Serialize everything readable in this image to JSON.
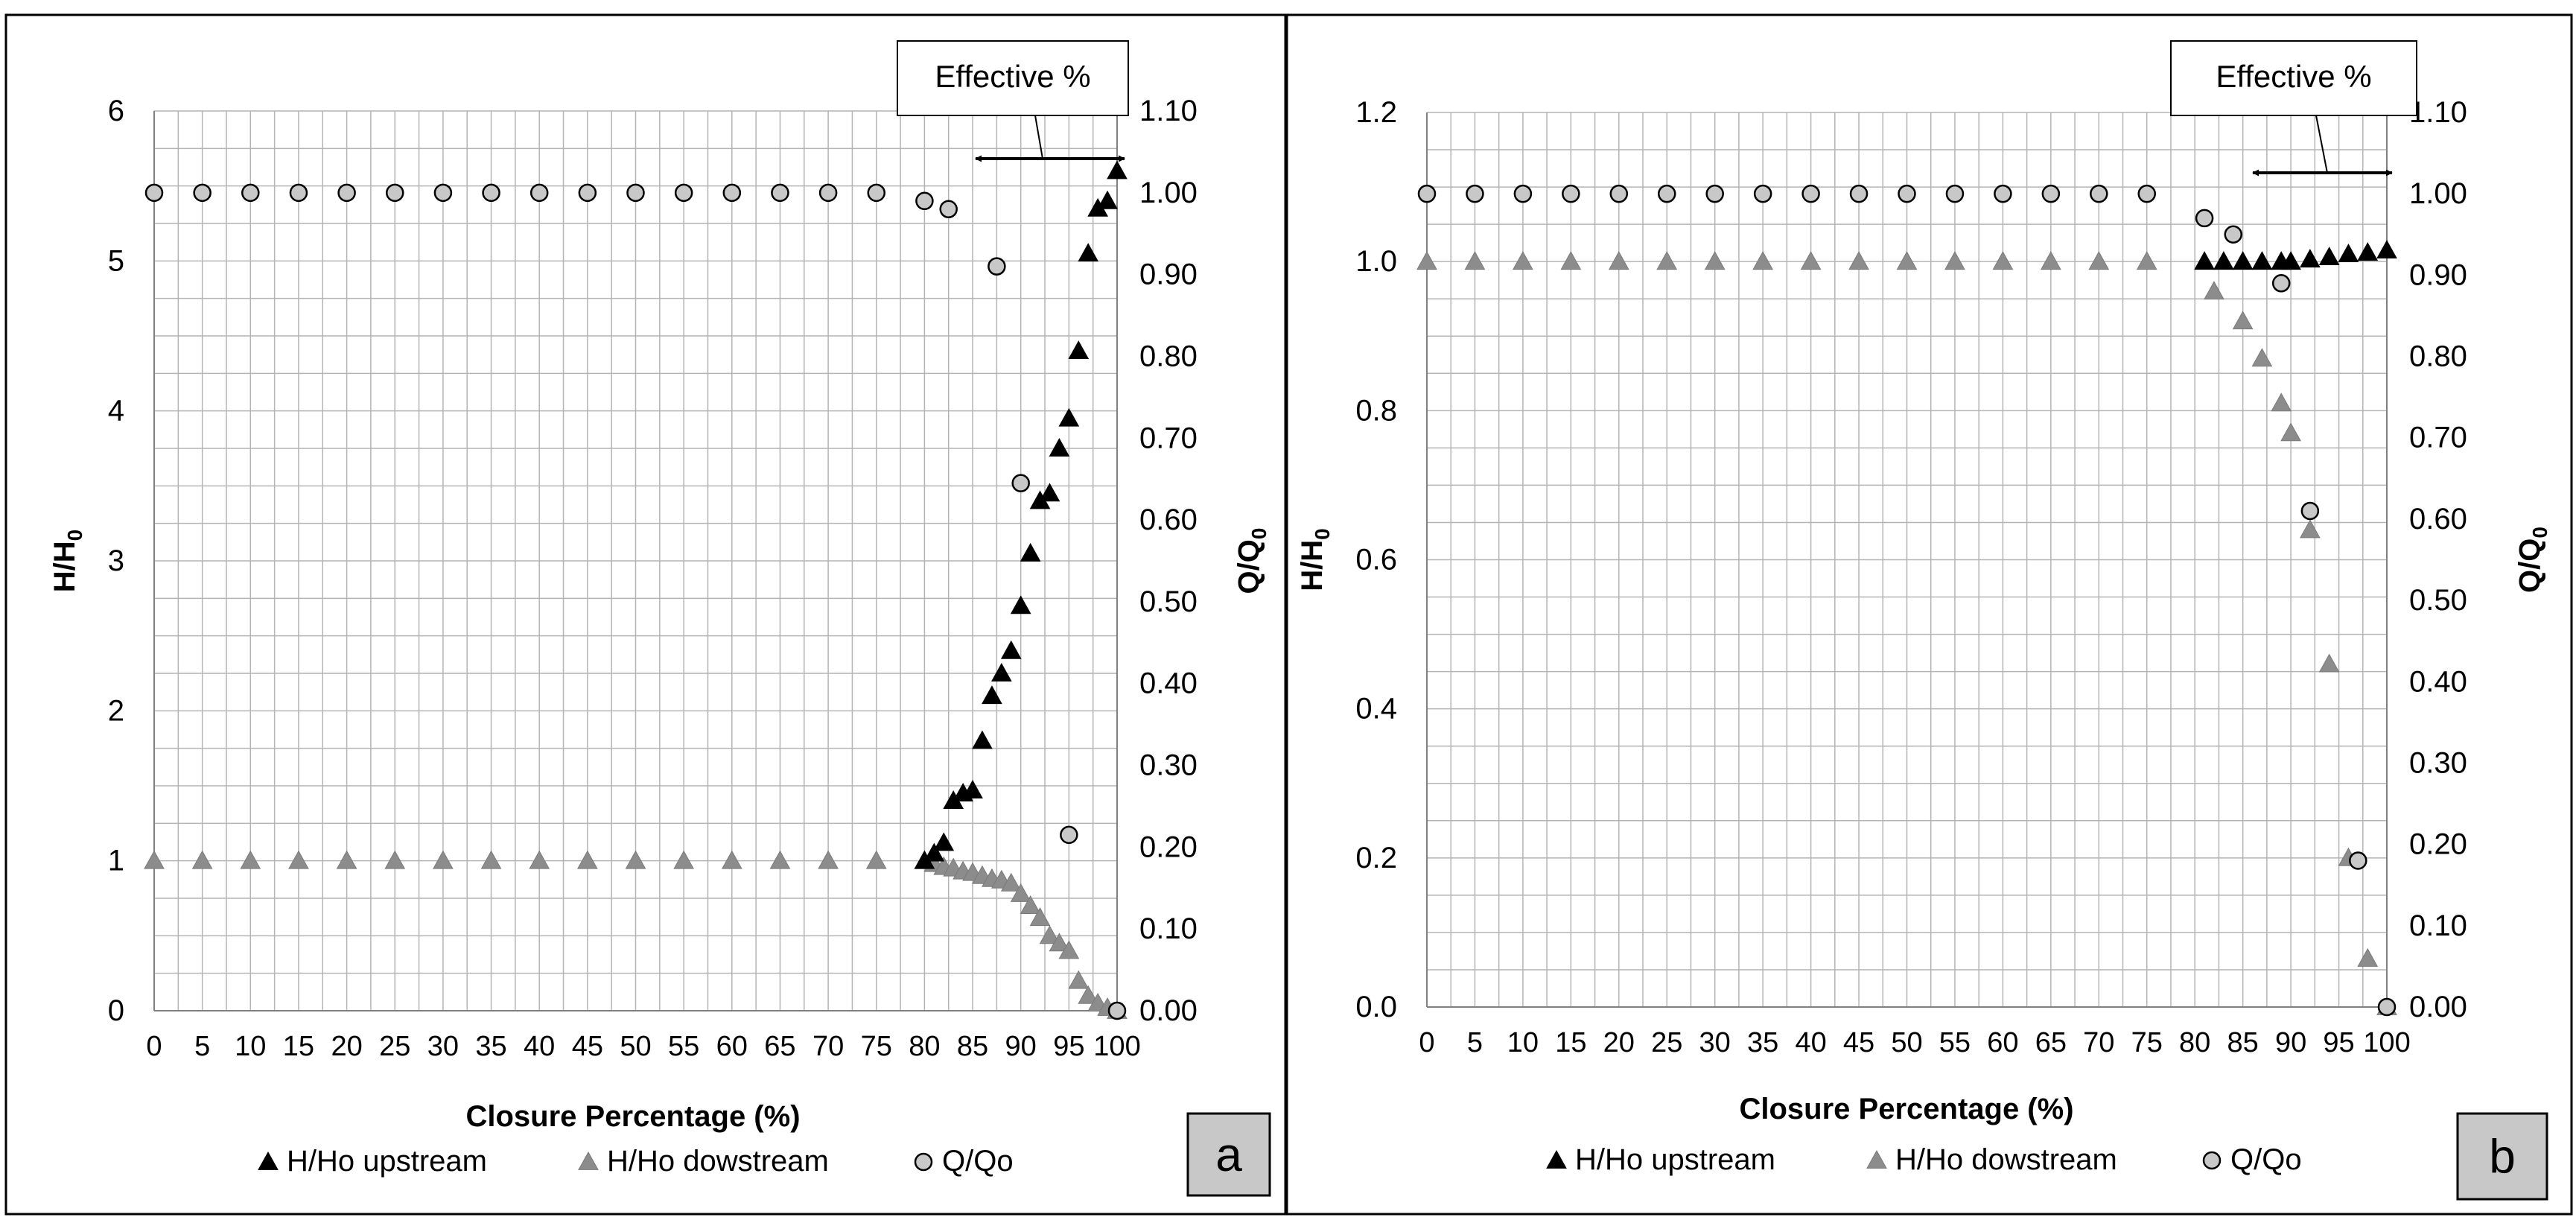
{
  "figure": {
    "panel_labels": [
      "a",
      "b"
    ]
  },
  "chart_data": [
    {
      "type": "scatter",
      "panel": "a",
      "title": "",
      "xlabel": "Closure Percentage (%)",
      "ylabel_left_main": "H/H",
      "ylabel_left_sub": "0",
      "ylabel_right_main": "Q/Q",
      "ylabel_right_sub": "0",
      "xlim": [
        0,
        100
      ],
      "ylim_left": [
        0,
        6
      ],
      "ylim_right": [
        0,
        1.1
      ],
      "xticks": [
        "0",
        "5",
        "10",
        "15",
        "20",
        "25",
        "30",
        "35",
        "40",
        "45",
        "50",
        "55",
        "60",
        "65",
        "70",
        "75",
        "80",
        "85",
        "90",
        "95",
        "100"
      ],
      "yticks_left": [
        "0",
        "1",
        "2",
        "3",
        "4",
        "5",
        "6"
      ],
      "yticks_right": [
        "0.00",
        "0.10",
        "0.20",
        "0.30",
        "0.40",
        "0.50",
        "0.60",
        "0.70",
        "0.80",
        "0.90",
        "1.00",
        "1.10"
      ],
      "grid": true,
      "legend": [
        "H/Ho upstream",
        "H/Ho dowstream",
        "Q/Qo"
      ],
      "annotation": {
        "text": "Effective %",
        "arrow_from": 86,
        "arrow_to": 100
      },
      "series": [
        {
          "name": "H/Ho upstream",
          "marker": "triangle",
          "color": "#000000",
          "axis": "left",
          "x": [
            80,
            81,
            82,
            83,
            84,
            85,
            86,
            87,
            88,
            89,
            90,
            91,
            92,
            93,
            94,
            95,
            96,
            97,
            98,
            99,
            100
          ],
          "y": [
            1.0,
            1.05,
            1.12,
            1.4,
            1.45,
            1.47,
            1.8,
            2.1,
            2.25,
            2.4,
            2.7,
            3.05,
            3.4,
            3.45,
            3.75,
            3.95,
            4.4,
            5.05,
            5.35,
            5.4,
            5.6
          ]
        },
        {
          "name": "H/Ho dowstream",
          "marker": "triangle",
          "color": "#8c8c8c",
          "axis": "left",
          "x": [
            0,
            5,
            10,
            15,
            20,
            25,
            30,
            35,
            40,
            45,
            50,
            55,
            60,
            65,
            70,
            75,
            80,
            81,
            82,
            83,
            84,
            85,
            86,
            87,
            88,
            89,
            90,
            91,
            92,
            93,
            94,
            95,
            96,
            97,
            98,
            99,
            100
          ],
          "y": [
            1,
            1,
            1,
            1,
            1,
            1,
            1,
            1,
            1,
            1,
            1,
            1,
            1,
            1,
            1,
            1,
            1.0,
            0.98,
            0.96,
            0.95,
            0.93,
            0.92,
            0.9,
            0.88,
            0.87,
            0.85,
            0.78,
            0.7,
            0.62,
            0.5,
            0.45,
            0.4,
            0.2,
            0.1,
            0.05,
            0.02,
            0.0
          ]
        },
        {
          "name": "Q/Qo",
          "marker": "circle",
          "color": "#c8c8c8",
          "axis": "right",
          "x": [
            0,
            5,
            10,
            15,
            20,
            25,
            30,
            35,
            40,
            45,
            50,
            55,
            60,
            65,
            70,
            75,
            80,
            82.5,
            87.5,
            90,
            95,
            100
          ],
          "y": [
            1,
            1,
            1,
            1,
            1,
            1,
            1,
            1,
            1,
            1,
            1,
            1,
            1,
            1,
            1,
            1,
            0.99,
            0.98,
            0.91,
            0.645,
            0.215,
            0.0
          ]
        }
      ]
    },
    {
      "type": "scatter",
      "panel": "b",
      "title": "",
      "xlabel": "Closure Percentage (%)",
      "ylabel_left_main": "H/H",
      "ylabel_left_sub": "0",
      "ylabel_right_main": "Q/Q",
      "ylabel_right_sub": "0",
      "xlim": [
        0,
        100
      ],
      "ylim_left": [
        0,
        1.2
      ],
      "ylim_right": [
        0,
        1.1
      ],
      "xticks": [
        "0",
        "5",
        "10",
        "15",
        "20",
        "25",
        "30",
        "35",
        "40",
        "45",
        "50",
        "55",
        "60",
        "65",
        "70",
        "75",
        "80",
        "85",
        "90",
        "95",
        "100"
      ],
      "yticks_left": [
        "0.0",
        "0.2",
        "0.4",
        "0.6",
        "0.8",
        "1.0",
        "1.2"
      ],
      "yticks_right": [
        "0.00",
        "0.10",
        "0.20",
        "0.30",
        "0.40",
        "0.50",
        "0.60",
        "0.70",
        "0.80",
        "0.90",
        "1.00",
        "1.10"
      ],
      "grid": true,
      "legend": [
        "H/Ho upstream",
        "H/Ho dowstream",
        "Q/Qo"
      ],
      "annotation": {
        "text": "Effective %",
        "arrow_from": 86,
        "arrow_to": 100
      },
      "series": [
        {
          "name": "H/Ho upstream",
          "marker": "triangle",
          "color": "#000000",
          "axis": "left",
          "x": [
            81,
            83,
            85,
            87,
            89,
            90,
            92,
            94,
            96,
            98,
            100
          ],
          "y": [
            1.0,
            1.0,
            1.0,
            1.0,
            1.0,
            1.0,
            1.003,
            1.006,
            1.01,
            1.012,
            1.015
          ]
        },
        {
          "name": "H/Ho dowstream",
          "marker": "triangle",
          "color": "#8c8c8c",
          "axis": "left",
          "x": [
            0,
            5,
            10,
            15,
            20,
            25,
            30,
            35,
            40,
            45,
            50,
            55,
            60,
            65,
            70,
            75,
            82,
            85,
            87,
            89,
            90,
            92,
            94,
            96,
            98,
            100
          ],
          "y": [
            1,
            1,
            1,
            1,
            1,
            1,
            1,
            1,
            1,
            1,
            1,
            1,
            1,
            1,
            1,
            1,
            0.96,
            0.92,
            0.87,
            0.81,
            0.77,
            0.64,
            0.46,
            0.2,
            0.065,
            0.0
          ]
        },
        {
          "name": "Q/Qo",
          "marker": "circle",
          "color": "#c8c8c8",
          "axis": "right",
          "x": [
            0,
            5,
            10,
            15,
            20,
            25,
            30,
            35,
            40,
            45,
            50,
            55,
            60,
            65,
            70,
            75,
            81,
            84,
            89,
            92,
            97,
            100
          ],
          "y": [
            1,
            1,
            1,
            1,
            1,
            1,
            1,
            1,
            1,
            1,
            1,
            1,
            1,
            1,
            1,
            1,
            0.97,
            0.95,
            0.89,
            0.61,
            0.18,
            0.0
          ]
        }
      ]
    }
  ]
}
